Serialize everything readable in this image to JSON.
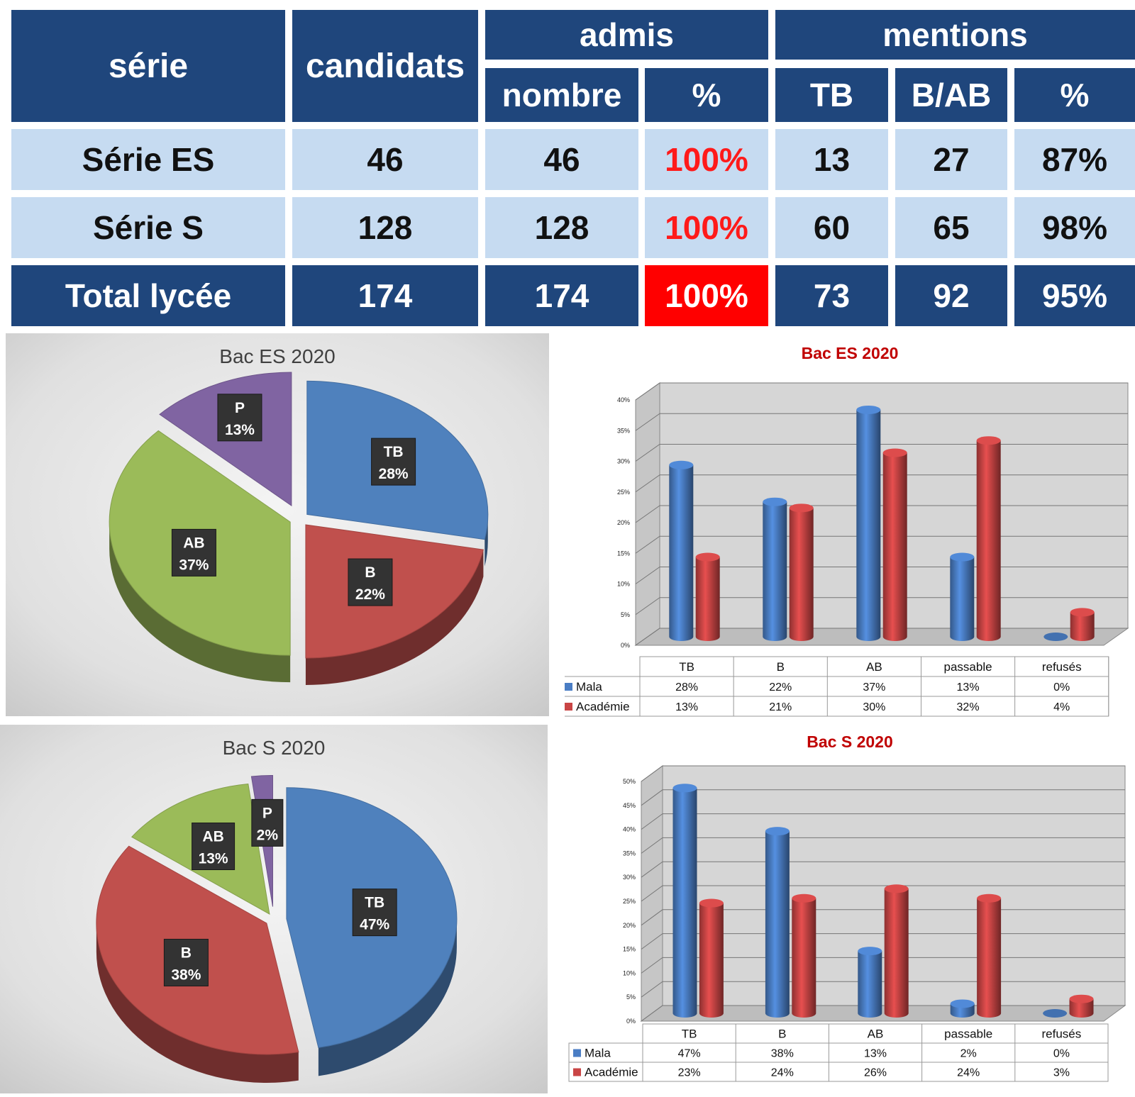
{
  "table": {
    "headers": {
      "serie": "série",
      "candidats": "candidats",
      "admis": "admis",
      "nombre": "nombre",
      "admis_pct": "%",
      "mentions": "mentions",
      "tb": "TB",
      "bab": "B/AB",
      "mentions_pct": "%"
    },
    "rows": [
      {
        "serie": "Série ES",
        "candidats": "46",
        "nombre": "46",
        "admis_pct": "100%",
        "tb": "13",
        "bab": "27",
        "mentions_pct": "87%"
      },
      {
        "serie": "Série S",
        "candidats": "128",
        "nombre": "128",
        "admis_pct": "100%",
        "tb": "60",
        "bab": "65",
        "mentions_pct": "98%"
      },
      {
        "serie": "Total lycée",
        "candidats": "174",
        "nombre": "174",
        "admis_pct": "100%",
        "tb": "73",
        "bab": "92",
        "mentions_pct": "95%"
      }
    ],
    "colors": {
      "header": "#1f467c",
      "light_row": "#c6dbf1",
      "highlight_red": "#ff0000"
    }
  },
  "chart_data": [
    {
      "type": "pie",
      "title": "Bac ES 2020",
      "slices": [
        {
          "label": "TB",
          "value": 28,
          "value_label": "28%",
          "color": "#4f81bd"
        },
        {
          "label": "B",
          "value": 22,
          "value_label": "22%",
          "color": "#c0504d"
        },
        {
          "label": "AB",
          "value": 37,
          "value_label": "37%",
          "color": "#9bbb59"
        },
        {
          "label": "P",
          "value": 13,
          "value_label": "13%",
          "color": "#8064a2"
        }
      ]
    },
    {
      "type": "bar",
      "title": "Bac ES 2020",
      "categories": [
        "TB",
        "B",
        "AB",
        "passable",
        "refusés"
      ],
      "series": [
        {
          "name": "Mala",
          "values": [
            28,
            22,
            37,
            13,
            0
          ],
          "labels": [
            "28%",
            "22%",
            "37%",
            "13%",
            "0%"
          ],
          "color": "#4a7dc4"
        },
        {
          "name": "Académie",
          "values": [
            13,
            21,
            30,
            32,
            4
          ],
          "labels": [
            "13%",
            "21%",
            "30%",
            "32%",
            "4%"
          ],
          "color": "#c94545"
        }
      ],
      "ylim": [
        0,
        40
      ],
      "yticks": [
        "0%",
        "5%",
        "10%",
        "15%",
        "20%",
        "25%",
        "30%",
        "35%",
        "40%"
      ],
      "grid": true,
      "legend": "table-below"
    },
    {
      "type": "pie",
      "title": "Bac S 2020",
      "slices": [
        {
          "label": "TB",
          "value": 47,
          "value_label": "47%",
          "color": "#4f81bd"
        },
        {
          "label": "B",
          "value": 38,
          "value_label": "38%",
          "color": "#c0504d"
        },
        {
          "label": "AB",
          "value": 13,
          "value_label": "13%",
          "color": "#9bbb59"
        },
        {
          "label": "P",
          "value": 2,
          "value_label": "2%",
          "color": "#8064a2"
        }
      ]
    },
    {
      "type": "bar",
      "title": "Bac S 2020",
      "categories": [
        "TB",
        "B",
        "AB",
        "passable",
        "refusés"
      ],
      "series": [
        {
          "name": "Mala",
          "values": [
            47,
            38,
            13,
            2,
            0
          ],
          "labels": [
            "47%",
            "38%",
            "13%",
            "2%",
            "0%"
          ],
          "color": "#4a7dc4"
        },
        {
          "name": "Académie",
          "values": [
            23,
            24,
            26,
            24,
            3
          ],
          "labels": [
            "23%",
            "24%",
            "26%",
            "24%",
            "3%"
          ],
          "color": "#c94545"
        }
      ],
      "ylim": [
        0,
        50
      ],
      "yticks": [
        "0%",
        "5%",
        "10%",
        "15%",
        "20%",
        "25%",
        "30%",
        "35%",
        "40%",
        "45%",
        "50%"
      ],
      "grid": true,
      "legend": "table-below"
    }
  ]
}
